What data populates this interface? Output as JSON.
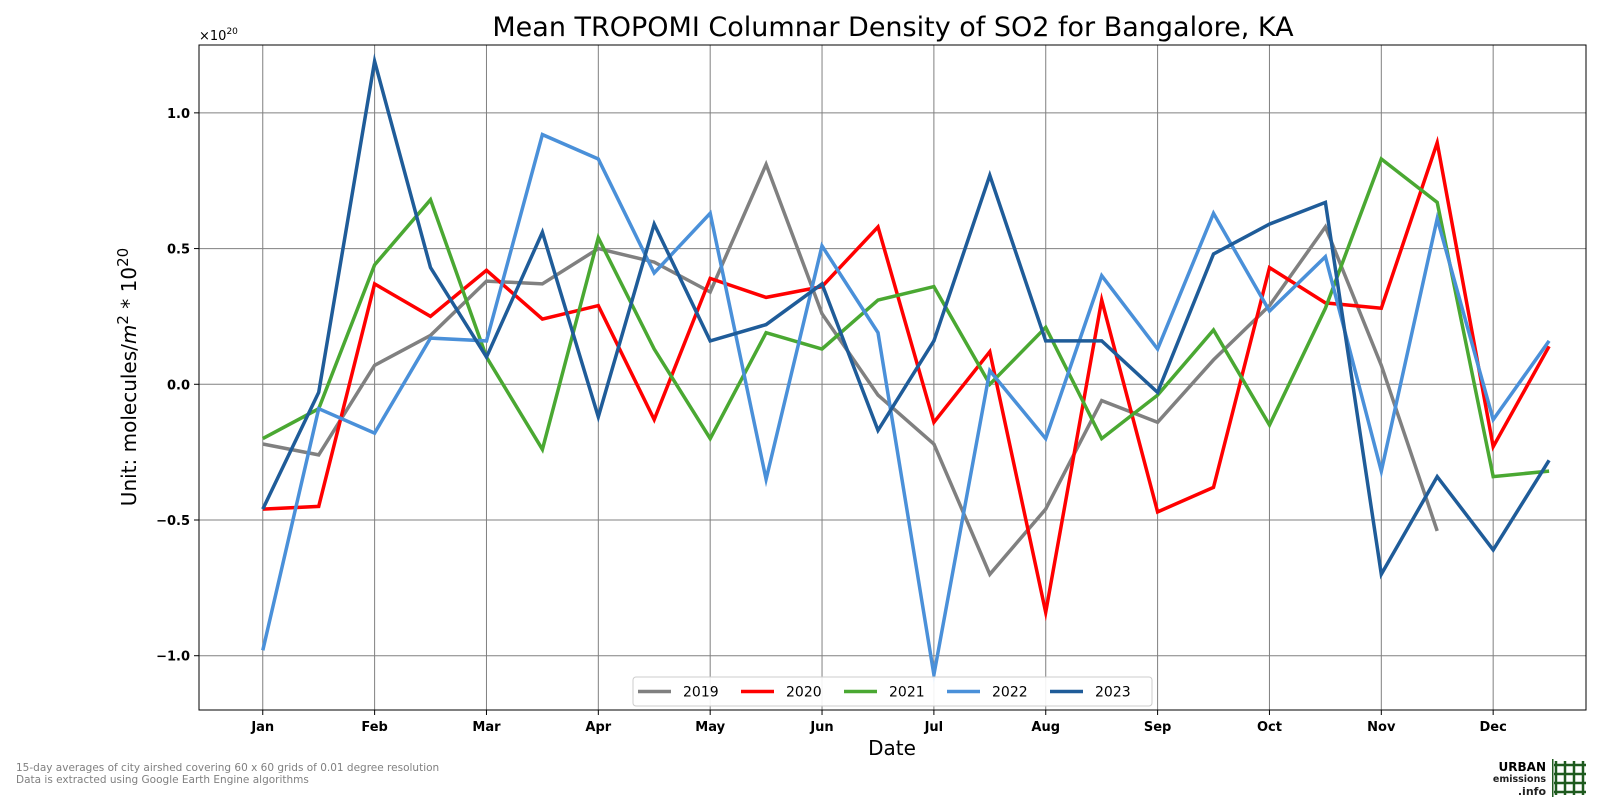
{
  "chart_data": {
    "type": "line",
    "title": "Mean TROPOMI Columnar Density of SO2 for Bangalore, KA",
    "xlabel": "Date",
    "ylabel_prefix": "Unit: molecules/",
    "ylabel_unit_base": "m",
    "ylabel_unit_exp": "2",
    "ylabel_mid": " * 10",
    "ylabel_exp": "20",
    "multiplier_base": "×10",
    "multiplier_exp": "20",
    "ylim": [
      -1.2,
      1.25
    ],
    "yticks": [
      -1.0,
      -0.5,
      0.0,
      0.5,
      1.0
    ],
    "ytick_labels": [
      "−1.0",
      "−0.5",
      "0.0",
      "0.5",
      "1.0"
    ],
    "xlim": [
      -0.57,
      11.83
    ],
    "xtick_labels": [
      "Jan",
      "Feb",
      "Mar",
      "Apr",
      "May",
      "Jun",
      "Jul",
      "Aug",
      "Sep",
      "Oct",
      "Nov",
      "Dec"
    ],
    "grid": true,
    "legend_position": "lower center",
    "series": [
      {
        "name": "2019",
        "color": "#808080",
        "x": [
          0,
          0.5,
          1,
          1.5,
          2,
          2.5,
          3,
          3.5,
          4,
          4.5,
          5,
          5.5,
          6,
          6.5,
          7,
          7.5,
          8,
          8.5,
          9,
          9.5,
          10,
          10.5
        ],
        "values": [
          -0.22,
          -0.26,
          0.07,
          0.18,
          0.38,
          0.37,
          0.5,
          0.45,
          0.34,
          0.81,
          0.26,
          -0.04,
          -0.22,
          -0.7,
          -0.46,
          -0.06,
          -0.14,
          0.09,
          0.29,
          0.58,
          0.07,
          -0.54
        ]
      },
      {
        "name": "2020",
        "color": "#ff0000",
        "x": [
          0,
          0.5,
          1,
          1.5,
          2,
          2.5,
          3,
          3.5,
          4,
          4.5,
          5,
          5.5,
          6,
          6.5,
          7,
          7.5,
          8,
          8.5,
          9,
          9.5,
          10,
          10.5,
          11,
          11.5
        ],
        "values": [
          -0.46,
          -0.45,
          0.37,
          0.25,
          0.42,
          0.24,
          0.29,
          -0.13,
          0.39,
          0.32,
          0.36,
          0.58,
          -0.14,
          0.12,
          -0.84,
          0.31,
          -0.47,
          -0.38,
          0.43,
          0.3,
          0.28,
          0.89,
          -0.23,
          0.14
        ]
      },
      {
        "name": "2021",
        "color": "#4aa832",
        "x": [
          0,
          0.5,
          1,
          1.5,
          2,
          2.5,
          3,
          3.5,
          4,
          4.5,
          5,
          5.5,
          6,
          6.5,
          7,
          7.5,
          8,
          8.5,
          9,
          9.5,
          10,
          10.5,
          11,
          11.5
        ],
        "values": [
          -0.2,
          -0.09,
          0.44,
          0.68,
          0.1,
          -0.24,
          0.54,
          0.13,
          -0.2,
          0.19,
          0.13,
          0.31,
          0.36,
          0.0,
          0.21,
          -0.2,
          -0.04,
          0.2,
          -0.15,
          0.28,
          0.83,
          0.67,
          -0.34,
          -0.32
        ]
      },
      {
        "name": "2022",
        "color": "#4a90d9",
        "x": [
          0,
          0.5,
          1,
          1.5,
          2,
          2.5,
          3,
          3.5,
          4,
          4.5,
          5,
          5.5,
          6,
          6.5,
          7,
          7.5,
          8,
          8.5,
          9,
          9.5,
          10,
          10.5,
          11,
          11.5
        ],
        "values": [
          -0.98,
          -0.09,
          -0.18,
          0.17,
          0.16,
          0.92,
          0.83,
          0.41,
          0.63,
          -0.35,
          0.51,
          0.19,
          -1.07,
          0.05,
          -0.2,
          0.4,
          0.13,
          0.63,
          0.27,
          0.47,
          -0.32,
          0.61,
          -0.13,
          0.16
        ]
      },
      {
        "name": "2023",
        "color": "#1f5c99",
        "x": [
          0,
          0.5,
          1,
          1.5,
          2,
          2.5,
          3,
          3.5,
          4,
          4.5,
          5,
          5.5,
          6,
          6.5,
          7,
          7.5,
          8,
          8.5,
          9,
          9.5,
          10,
          10.5,
          11,
          11.5
        ],
        "values": [
          -0.46,
          -0.03,
          1.19,
          0.43,
          0.1,
          0.56,
          -0.12,
          0.59,
          0.16,
          0.22,
          0.37,
          -0.17,
          0.16,
          0.77,
          0.16,
          0.16,
          -0.03,
          0.48,
          0.59,
          0.67,
          -0.7,
          -0.34,
          -0.61,
          -0.28
        ]
      }
    ]
  },
  "footnote": {
    "line1": "15-day averages of city airshed covering 60 x 60 grids of 0.01 degree resolution",
    "line2": "Data is extracted using Google Earth Engine algorithms"
  },
  "logo": {
    "word1": "URBAN",
    "word2": "emissions",
    "word3": ".info",
    "color": "#1e5a1e"
  }
}
